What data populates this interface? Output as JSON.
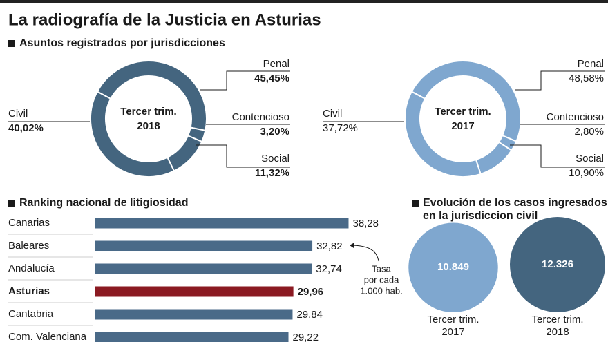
{
  "title": "La radiografía de la Justicia en Asturias",
  "chart_data": [
    {
      "type": "pie",
      "title": "Asuntos registrados por jurisdicciones",
      "center_label": [
        "Tercer trim.",
        "2018"
      ],
      "categories": [
        "Penal",
        "Contencioso",
        "Social",
        "Civil"
      ],
      "values": [
        45.45,
        3.2,
        11.32,
        40.02
      ],
      "value_labels": [
        "45,45%",
        "3,20%",
        "11,32%",
        "40,02%"
      ],
      "color": "#44657f",
      "bold_values": true
    },
    {
      "type": "pie",
      "center_label": [
        "Tercer trim.",
        "2017"
      ],
      "categories": [
        "Penal",
        "Contencioso",
        "Social",
        "Civil"
      ],
      "values": [
        48.58,
        2.8,
        10.9,
        37.72
      ],
      "value_labels": [
        "48,58%",
        "2,80%",
        "10,90%",
        "37,72%"
      ],
      "color": "#7fa7cf",
      "bold_values": false
    },
    {
      "type": "hbar",
      "title": "Ranking nacional de litigiosidad",
      "categories": [
        "Canarias",
        "Baleares",
        "Andalucía",
        "Asturias",
        "Cantabria",
        "Com. Valenciana"
      ],
      "values": [
        38.28,
        32.82,
        32.74,
        29.96,
        29.84,
        29.22
      ],
      "value_labels": [
        "38,28",
        "32,82",
        "32,74",
        "29,96",
        "29,84",
        "29,22"
      ],
      "colors": [
        "#4a6a88",
        "#4a6a88",
        "#4a6a88",
        "#8b1a22",
        "#4a6a88",
        "#4a6a88"
      ],
      "xlim": [
        0,
        40
      ],
      "annotation": [
        "Tasa",
        "por cada",
        "1.000 hab."
      ]
    },
    {
      "type": "bubble",
      "title": [
        "Evolución de los casos ingresados",
        "en la jurisdiccion civil"
      ],
      "categories": [
        [
          "Tercer trim.",
          "2017"
        ],
        [
          "Tercer trim.",
          "2018"
        ]
      ],
      "values": [
        10849,
        12326
      ],
      "value_labels": [
        "10.849",
        "12.326"
      ],
      "colors": [
        "#7fa7cf",
        "#44657f"
      ]
    }
  ]
}
